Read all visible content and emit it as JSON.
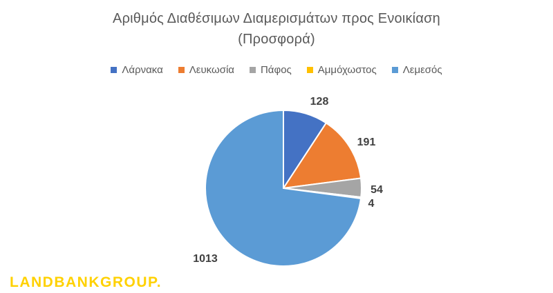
{
  "chart_data": {
    "type": "pie",
    "title": "Αριθμός Διαθέσιμων Διαμερισμάτων προς Ενοικίαση",
    "subtitle": "(Προσφορά)",
    "legend_position": "top",
    "categories": [
      "Λάρνακα",
      "Λευκωσία",
      "Πάφος",
      "Αμμόχωστος",
      "Λεμεσός"
    ],
    "values": [
      128,
      191,
      54,
      4,
      1013
    ],
    "colors": [
      "#4472c4",
      "#ed7d31",
      "#a5a5a5",
      "#ffc000",
      "#5b9bd5"
    ],
    "data_labels": [
      "128",
      "191",
      "54",
      "4",
      "1013"
    ]
  },
  "brand": {
    "logo_text": "LANDBANKGROUP",
    "logo_dot": "."
  }
}
